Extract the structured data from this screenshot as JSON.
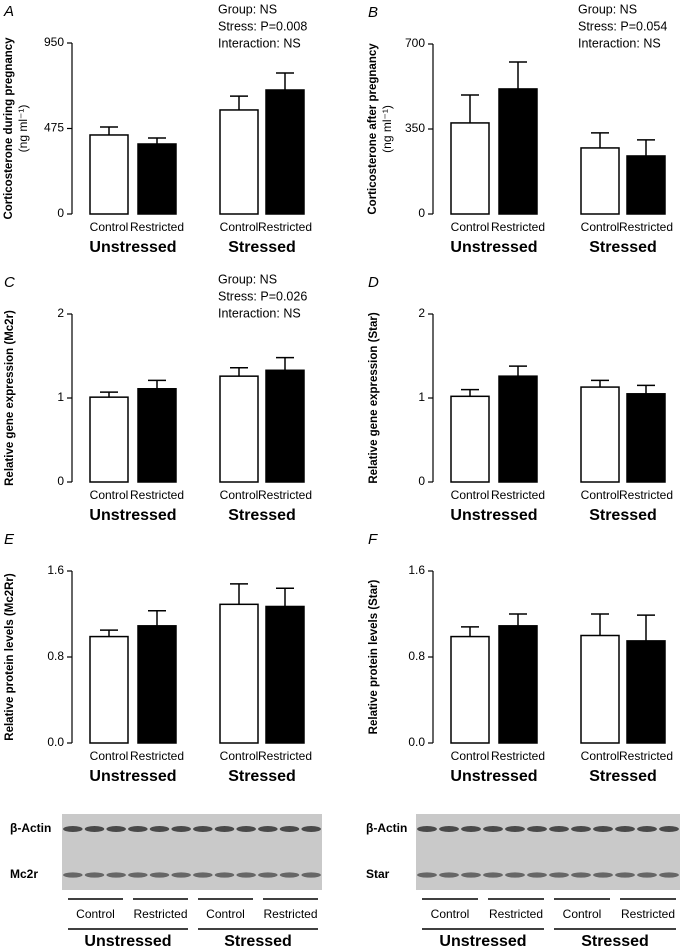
{
  "chart_data": [
    {
      "type": "bar",
      "panel": "A",
      "ylabel": "Corticosterone during pregnancy",
      "ylabel_unit": "(ng ml⁻¹)",
      "annotations": [
        "Group: NS",
        "Stress: P=0.008",
        "Interaction: NS"
      ],
      "categories": [
        "Control",
        "Restricted",
        "Control",
        "Restricted"
      ],
      "groups": [
        "Unstressed",
        "Stressed"
      ],
      "values": [
        439,
        389,
        578,
        689
      ],
      "errors": [
        44,
        33,
        77,
        94
      ],
      "colors": [
        "#ffffff",
        "#000000",
        "#ffffff",
        "#000000"
      ],
      "ylim": [
        0,
        950
      ],
      "yticks": [
        0,
        475,
        950
      ]
    },
    {
      "type": "bar",
      "panel": "B",
      "ylabel": "Corticosterone after pregnancy",
      "ylabel_unit": "(ng ml⁻¹)",
      "annotations": [
        "Group: NS",
        "Stress: P=0.054",
        "Interaction: NS"
      ],
      "categories": [
        "Control",
        "Restricted",
        "Control",
        "Restricted"
      ],
      "groups": [
        "Unstressed",
        "Stressed"
      ],
      "values": [
        375,
        515,
        272,
        239
      ],
      "errors": [
        115,
        111,
        62,
        66
      ],
      "colors": [
        "#ffffff",
        "#000000",
        "#ffffff",
        "#000000"
      ],
      "ylim": [
        0,
        700
      ],
      "yticks": [
        0,
        350,
        700
      ]
    },
    {
      "type": "bar",
      "panel": "C",
      "ylabel": "Relative gene expression (Mc2r)",
      "annotations": [
        "Group: NS",
        "Stress: P=0.026",
        "Interaction: NS"
      ],
      "categories": [
        "Control",
        "Restricted",
        "Control",
        "Restricted"
      ],
      "groups": [
        "Unstressed",
        "Stressed"
      ],
      "values": [
        1.01,
        1.11,
        1.26,
        1.33
      ],
      "errors": [
        0.06,
        0.1,
        0.1,
        0.15
      ],
      "colors": [
        "#ffffff",
        "#000000",
        "#ffffff",
        "#000000"
      ],
      "ylim": [
        0,
        2
      ],
      "yticks": [
        0,
        1,
        2
      ]
    },
    {
      "type": "bar",
      "panel": "D",
      "ylabel": "Relative gene expression (Star)",
      "categories": [
        "Control",
        "Restricted",
        "Control",
        "Restricted"
      ],
      "groups": [
        "Unstressed",
        "Stressed"
      ],
      "values": [
        1.02,
        1.26,
        1.13,
        1.05
      ],
      "errors": [
        0.08,
        0.12,
        0.08,
        0.1
      ],
      "colors": [
        "#ffffff",
        "#000000",
        "#ffffff",
        "#000000"
      ],
      "ylim": [
        0,
        2
      ],
      "yticks": [
        0,
        1,
        2
      ]
    },
    {
      "type": "bar",
      "panel": "E",
      "ylabel": "Relative protein levels (Mc2Rr)",
      "categories": [
        "Control",
        "Restricted",
        "Control",
        "Restricted"
      ],
      "groups": [
        "Unstressed",
        "Stressed"
      ],
      "values": [
        0.99,
        1.09,
        1.29,
        1.27
      ],
      "errors": [
        0.06,
        0.14,
        0.19,
        0.17
      ],
      "colors": [
        "#ffffff",
        "#000000",
        "#ffffff",
        "#000000"
      ],
      "ylim": [
        0,
        1.6
      ],
      "yticks": [
        {
          "value": 0,
          "label": "0.0"
        },
        0.8,
        1.6
      ]
    },
    {
      "type": "bar",
      "panel": "F",
      "ylabel": "Relative protein levels (Star)",
      "categories": [
        "Control",
        "Restricted",
        "Control",
        "Restricted"
      ],
      "groups": [
        "Unstressed",
        "Stressed"
      ],
      "values": [
        0.99,
        1.09,
        1.0,
        0.95
      ],
      "errors": [
        0.09,
        0.11,
        0.2,
        0.24
      ],
      "colors": [
        "#ffffff",
        "#000000",
        "#ffffff",
        "#000000"
      ],
      "ylim": [
        0,
        1.6
      ],
      "yticks": [
        {
          "value": 0,
          "label": "0.0"
        },
        0.8,
        1.6
      ]
    }
  ],
  "blots": [
    {
      "rows": [
        "β-Actin",
        "Mc2r"
      ],
      "lanes": [
        "Control",
        "Restricted",
        "Control",
        "Restricted"
      ],
      "groups": [
        "Unstressed",
        "Stressed"
      ]
    },
    {
      "rows": [
        "β-Actin",
        "Star"
      ],
      "lanes": [
        "Control",
        "Restricted",
        "Control",
        "Restricted"
      ],
      "groups": [
        "Unstressed",
        "Stressed"
      ]
    }
  ]
}
